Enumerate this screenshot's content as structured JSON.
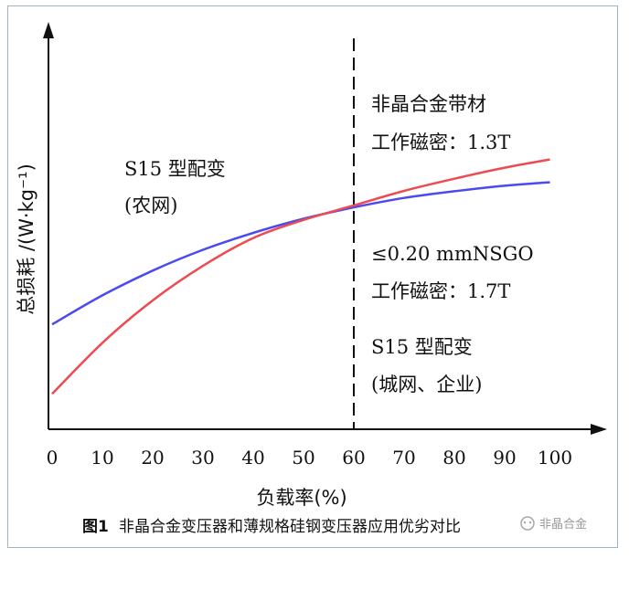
{
  "chart_data": {
    "type": "line",
    "xlabel": "负载率(%)",
    "ylabel": "总损耗 /(W·kg⁻¹)",
    "x_ticks": [
      "0",
      "10",
      "20",
      "30",
      "40",
      "50",
      "60",
      "70",
      "80",
      "90",
      "100"
    ],
    "xlim": [
      0,
      100
    ],
    "ylim": [
      0,
      10
    ],
    "grid": false,
    "series": [
      {
        "color": "#4a4af0",
        "x": [
          0,
          10,
          20,
          30,
          40,
          50,
          60,
          70,
          80,
          90,
          99
        ],
        "y": [
          2.67,
          3.41,
          4.04,
          4.57,
          5.0,
          5.36,
          5.65,
          5.89,
          6.06,
          6.2,
          6.29
        ]
      },
      {
        "color": "#ee4a52",
        "x": [
          0,
          10,
          20,
          30,
          40,
          50,
          60,
          70,
          80,
          90,
          99
        ],
        "y": [
          0.9,
          2.2,
          3.28,
          4.16,
          4.87,
          5.33,
          5.7,
          6.07,
          6.38,
          6.66,
          6.87
        ]
      }
    ],
    "vline_x": 60,
    "annotations": [
      {
        "lines": [
          "S15 型配变",
          "(农网)"
        ]
      },
      {
        "lines": [
          "非晶合金带材",
          "工作磁密：1.3T"
        ]
      },
      {
        "lines": [
          "≤0.20 mmNSGO",
          "工作磁密：1.7T"
        ]
      },
      {
        "lines": [
          "S15 型配变",
          "(城网、企业)"
        ]
      }
    ],
    "caption": {
      "number": "图1",
      "text": "非晶合金变压器和薄规格硅钢变压器应用优劣对比"
    }
  },
  "watermark": "非晶合金"
}
